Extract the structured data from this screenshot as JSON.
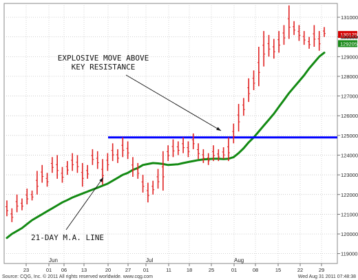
{
  "chart_data": {
    "type": "bar",
    "subtype": "ohlc",
    "y_scale": "linear",
    "ylim": [
      118500,
      131700
    ],
    "y_ticks": [
      119000,
      120000,
      121000,
      122000,
      123000,
      124000,
      125000,
      126000,
      127000,
      128000,
      129000,
      130000,
      131000
    ],
    "grid": true,
    "x_day_ticks": [
      "23",
      "01",
      "06",
      "13",
      "20",
      "27",
      "01",
      "11",
      "18",
      "25",
      "01",
      "08",
      "15",
      "22",
      "29"
    ],
    "x_month_labels": [
      "Jun",
      "Jul",
      "Aug"
    ],
    "bars": [
      {
        "h": 121700,
        "l": 120900
      },
      {
        "h": 121300,
        "l": 120600
      },
      {
        "h": 122000,
        "l": 121100
      },
      {
        "h": 121800,
        "l": 121200
      },
      {
        "h": 122300,
        "l": 121500
      },
      {
        "h": 122200,
        "l": 121700
      },
      {
        "h": 123200,
        "l": 122000
      },
      {
        "h": 123500,
        "l": 122600
      },
      {
        "h": 123100,
        "l": 122400
      },
      {
        "h": 123900,
        "l": 123100
      },
      {
        "h": 124000,
        "l": 122800
      },
      {
        "h": 123400,
        "l": 122600
      },
      {
        "h": 123700,
        "l": 123000
      },
      {
        "h": 124100,
        "l": 123200
      },
      {
        "h": 124000,
        "l": 123100
      },
      {
        "h": 123600,
        "l": 122400
      },
      {
        "h": 123500,
        "l": 122800
      },
      {
        "h": 124300,
        "l": 123500
      },
      {
        "h": 124200,
        "l": 123300
      },
      {
        "h": 123800,
        "l": 122500
      },
      {
        "h": 124100,
        "l": 123200
      },
      {
        "h": 124600,
        "l": 123700
      },
      {
        "h": 124300,
        "l": 123600
      },
      {
        "h": 124900,
        "l": 123900
      },
      {
        "h": 124700,
        "l": 123800
      },
      {
        "h": 123900,
        "l": 122900
      },
      {
        "h": 123600,
        "l": 122800
      },
      {
        "h": 123000,
        "l": 122100
      },
      {
        "h": 122600,
        "l": 121600
      },
      {
        "h": 122700,
        "l": 122000
      },
      {
        "h": 123300,
        "l": 122300
      },
      {
        "h": 124200,
        "l": 122200
      },
      {
        "h": 124500,
        "l": 123700
      },
      {
        "h": 124800,
        "l": 123900
      },
      {
        "h": 124700,
        "l": 124000
      },
      {
        "h": 124900,
        "l": 124100
      },
      {
        "h": 124700,
        "l": 123900
      },
      {
        "h": 125100,
        "l": 124300
      },
      {
        "h": 124600,
        "l": 123800
      },
      {
        "h": 124300,
        "l": 123600
      },
      {
        "h": 124100,
        "l": 123500
      },
      {
        "h": 124500,
        "l": 123700
      },
      {
        "h": 124300,
        "l": 123700
      },
      {
        "h": 124400,
        "l": 123800
      },
      {
        "h": 124900,
        "l": 123700
      },
      {
        "h": 125600,
        "l": 124600
      },
      {
        "h": 126600,
        "l": 125200
      },
      {
        "h": 126900,
        "l": 126000
      },
      {
        "h": 127900,
        "l": 126700
      },
      {
        "h": 128300,
        "l": 127300
      },
      {
        "h": 129500,
        "l": 127500
      },
      {
        "h": 130300,
        "l": 128500
      },
      {
        "h": 130100,
        "l": 129000
      },
      {
        "h": 129900,
        "l": 128900
      },
      {
        "h": 130300,
        "l": 129200
      },
      {
        "h": 130600,
        "l": 129600
      },
      {
        "h": 131600,
        "l": 129900
      },
      {
        "h": 130800,
        "l": 130100
      },
      {
        "h": 130600,
        "l": 129800
      },
      {
        "h": 130300,
        "l": 129600
      },
      {
        "h": 130000,
        "l": 129400
      },
      {
        "h": 130600,
        "l": 129500
      },
      {
        "h": 130300,
        "l": 129300
      },
      {
        "h": 130500,
        "l": 130000
      }
    ],
    "series": [
      {
        "name": "21-DAY M.A. LINE",
        "color": "#138a13",
        "values": [
          119800,
          120000,
          120150,
          120300,
          120500,
          120700,
          120850,
          121000,
          121150,
          121300,
          121450,
          121600,
          121720,
          121850,
          121950,
          122050,
          122150,
          122250,
          122350,
          122450,
          122550,
          122700,
          122850,
          123000,
          123100,
          123250,
          123350,
          123500,
          123550,
          123600,
          123580,
          123550,
          123500,
          123520,
          123540,
          123600,
          123650,
          123700,
          123750,
          123780,
          123800,
          123820,
          123820,
          123800,
          123820,
          123900,
          124100,
          124350,
          124650,
          124900,
          125200,
          125500,
          125800,
          126100,
          126450,
          126800,
          127150,
          127450,
          127750,
          128050,
          128400,
          128700,
          129000,
          129200
        ]
      }
    ],
    "resistance": {
      "value": 124900,
      "color": "#0000ff"
    },
    "price_tags": [
      {
        "value": "130125",
        "y": 130125,
        "bg": "#d40000"
      },
      {
        "value": "130000",
        "y": 130000,
        "bg": ""
      },
      {
        "value": "129205",
        "y": 129660,
        "bg": "#1a8a1a"
      }
    ],
    "annotations": [
      {
        "lines": [
          "EXPLOSIVE MOVE ABOVE",
          "KEY RESISTANCE"
        ]
      },
      {
        "lines": [
          "21-DAY M.A. LINE"
        ]
      }
    ],
    "footer_left": "Source: CQG, Inc. © 2011 All rights reserved worldwide. www.cqg.com",
    "footer_right": "Wed Aug 31 2011 07:48:38"
  }
}
